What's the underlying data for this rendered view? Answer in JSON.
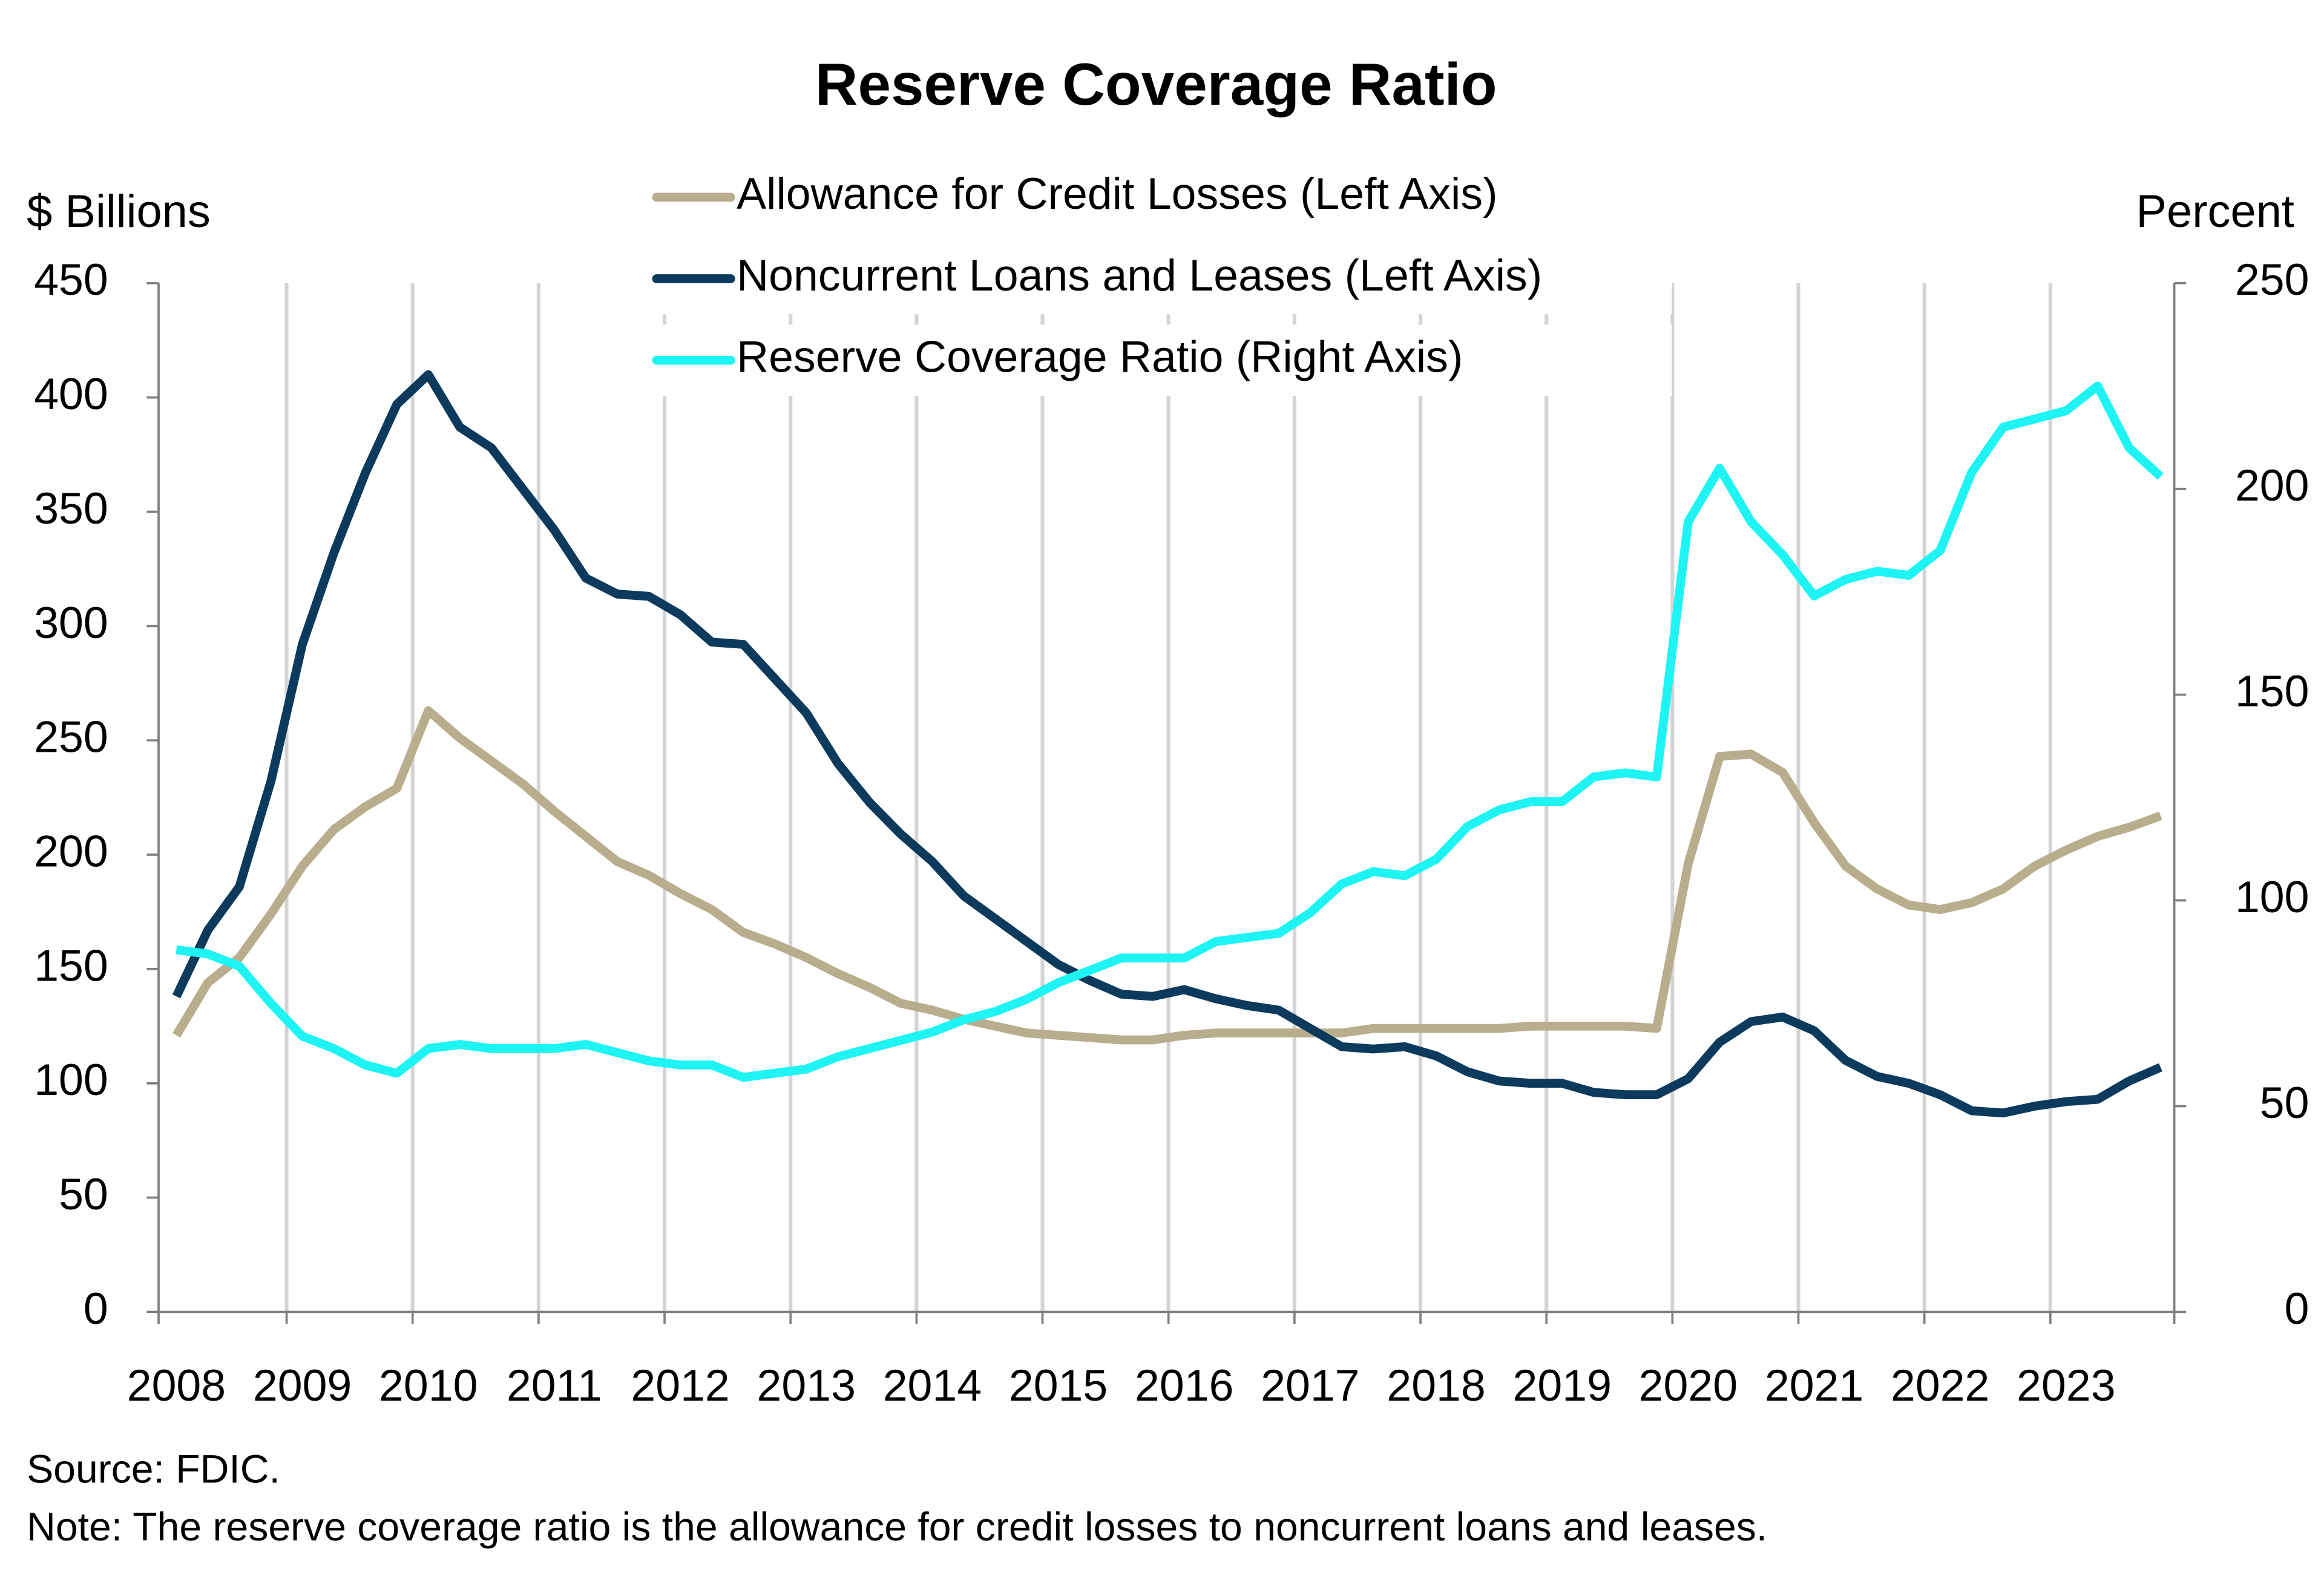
{
  "chart_data": {
    "type": "line",
    "title": "Reserve Coverage Ratio",
    "y_label": "$ Billions",
    "y2_label": "Percent",
    "source": "Source: FDIC.",
    "note": "Note: The reserve coverage ratio is the allowance for credit losses to noncurrent loans and leases.",
    "categories": [
      "2008",
      null,
      null,
      null,
      "2009",
      null,
      null,
      null,
      "2010",
      null,
      null,
      null,
      "2011",
      null,
      null,
      null,
      "2012",
      null,
      null,
      null,
      "2013",
      null,
      null,
      null,
      "2014",
      null,
      null,
      null,
      "2015",
      null,
      null,
      null,
      "2016",
      null,
      null,
      null,
      "2017",
      null,
      null,
      null,
      "2018",
      null,
      null,
      null,
      "2019",
      null,
      null,
      null,
      "2020",
      null,
      null,
      null,
      "2021",
      null,
      null,
      null,
      "2022",
      null,
      null,
      null,
      "2023",
      null,
      null,
      null
    ],
    "ylim": [
      0,
      450
    ],
    "yticks": [
      0,
      50,
      100,
      150,
      200,
      250,
      300,
      350,
      400,
      450
    ],
    "y2lim": [
      0,
      250
    ],
    "y2ticks": [
      0,
      50,
      100,
      150,
      200,
      250
    ],
    "grid": true,
    "series": [
      {
        "name": "Allowance for Credit Losses (Left Axis)",
        "color": "#b8ad8c",
        "axis": "y",
        "values": [
          121,
          144,
          155,
          174,
          195,
          211,
          221,
          229,
          263,
          251,
          241,
          231,
          219,
          208,
          197,
          191,
          183,
          176,
          166,
          161,
          155,
          148,
          142,
          135,
          132,
          128,
          125,
          122,
          121,
          120,
          119,
          119,
          121,
          122,
          122,
          122,
          122,
          122,
          124,
          124,
          124,
          124,
          124,
          125,
          125,
          125,
          125,
          124,
          196,
          243,
          244,
          236,
          214,
          195,
          185,
          178,
          176,
          179,
          185,
          195,
          202,
          208,
          212,
          217
        ]
      },
      {
        "name": "Noncurrent Loans and Leases (Left Axis)",
        "color": "#0b3a5d",
        "axis": "y",
        "values": [
          138,
          167,
          186,
          232,
          292,
          332,
          367,
          397,
          410,
          387,
          378,
          360,
          342,
          321,
          314,
          313,
          305,
          293,
          292,
          277,
          262,
          240,
          223,
          209,
          197,
          182,
          172,
          162,
          152,
          145,
          139,
          138,
          141,
          137,
          134,
          132,
          124,
          116,
          115,
          116,
          112,
          105,
          101,
          100,
          100,
          96,
          95,
          95,
          102,
          118,
          127,
          129,
          123,
          110,
          103,
          100,
          95,
          88,
          87,
          90,
          92,
          93,
          101,
          107
        ]
      },
      {
        "name": "Reserve Coverage Ratio (Right Axis)",
        "color": "#1ef4f4",
        "axis": "y2",
        "values": [
          88,
          87,
          84,
          75,
          67,
          64,
          60,
          58,
          64,
          65,
          64,
          64,
          64,
          65,
          63,
          61,
          60,
          60,
          57,
          58,
          59,
          62,
          64,
          66,
          68,
          71,
          73,
          76,
          80,
          83,
          86,
          86,
          86,
          90,
          91,
          92,
          97,
          104,
          107,
          106,
          110,
          118,
          122,
          124,
          124,
          130,
          131,
          130,
          192,
          205,
          192,
          184,
          174,
          178,
          180,
          179,
          185,
          204,
          215,
          217,
          219,
          225,
          210,
          203
        ]
      }
    ]
  }
}
